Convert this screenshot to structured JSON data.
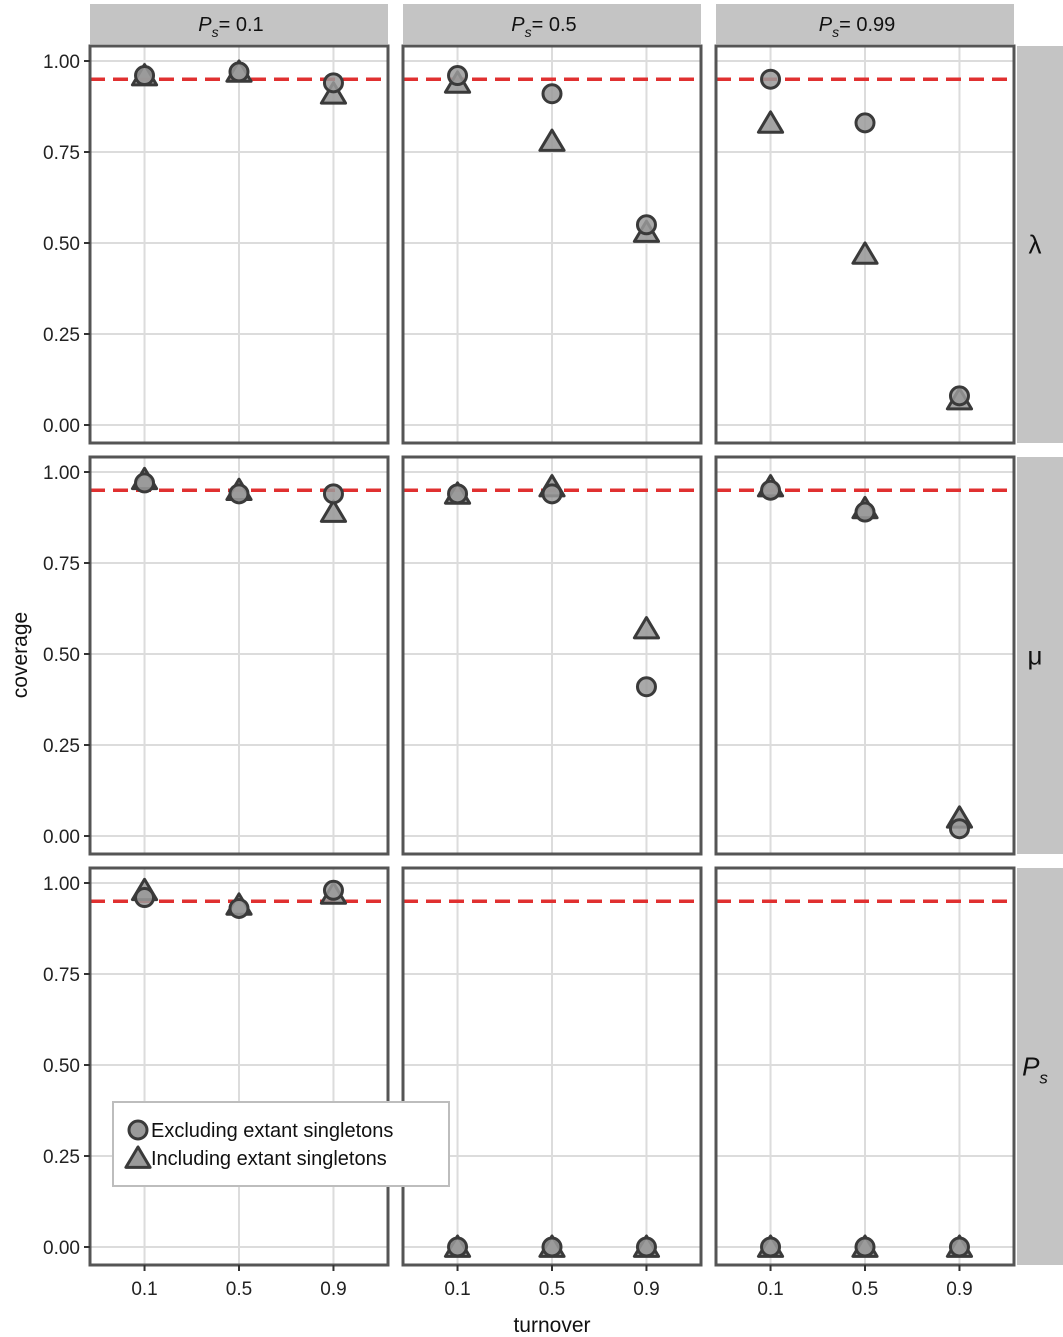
{
  "figure": {
    "xlabel": "turnover",
    "ylabel": "coverage"
  },
  "chart_data": {
    "type": "scatter",
    "x_categories": [
      "0.1",
      "0.5",
      "0.9"
    ],
    "y_ticks": [
      "0.00",
      "0.25",
      "0.50",
      "0.75",
      "1.00"
    ],
    "ylim": [
      -0.02,
      1.05
    ],
    "reference_line": {
      "y": 0.95,
      "color": "#e03030",
      "style": "dashed"
    },
    "columns": [
      {
        "label_main": "P",
        "label_sub": "s",
        "label_value": "= 0.1"
      },
      {
        "label_main": "P",
        "label_sub": "s",
        "label_value": "= 0.5"
      },
      {
        "label_main": "P",
        "label_sub": "s",
        "label_value": "= 0.99"
      }
    ],
    "rows": [
      {
        "label_main": "λ",
        "label_sub": ""
      },
      {
        "label_main": "μ",
        "label_sub": ""
      },
      {
        "label_main": "P",
        "label_sub": "s"
      }
    ],
    "legend": {
      "position": "bottom-left of lower-left panel",
      "entries": [
        {
          "shape": "circle",
          "label": "Excluding extant singletons"
        },
        {
          "shape": "triangle",
          "label": "Including extant singletons"
        }
      ]
    },
    "series": [
      {
        "name": "Excluding extant singletons",
        "shape": "circle",
        "values": [
          [
            [
              0.96,
              0.97,
              0.94
            ],
            [
              0.96,
              0.91,
              0.55
            ],
            [
              0.95,
              0.83,
              0.08
            ]
          ],
          [
            [
              0.97,
              0.94,
              0.94
            ],
            [
              0.94,
              0.94,
              0.41
            ],
            [
              0.95,
              0.89,
              0.02
            ]
          ],
          [
            [
              0.96,
              0.93,
              0.98
            ],
            [
              0.0,
              0.0,
              0.0
            ],
            [
              0.0,
              0.0,
              0.0
            ]
          ]
        ]
      },
      {
        "name": "Including extant singletons",
        "shape": "triangle",
        "values": [
          [
            [
              0.96,
              0.97,
              0.91
            ],
            [
              0.94,
              0.78,
              0.53
            ],
            [
              0.83,
              0.47,
              0.07
            ]
          ],
          [
            [
              0.98,
              0.95,
              0.89
            ],
            [
              0.94,
              0.96,
              0.57
            ],
            [
              0.96,
              0.9,
              0.05
            ]
          ],
          [
            [
              0.98,
              0.94,
              0.97
            ],
            [
              0.0,
              0.0,
              0.0
            ],
            [
              0.0,
              0.0,
              0.0
            ]
          ]
        ]
      }
    ],
    "colors": {
      "marker_fill": "#9a9a9a",
      "marker_stroke": "#3a3a3a",
      "strip_fill": "#c4c4c4",
      "grid": "#dcdcdc",
      "panel_border": "#555555"
    }
  }
}
